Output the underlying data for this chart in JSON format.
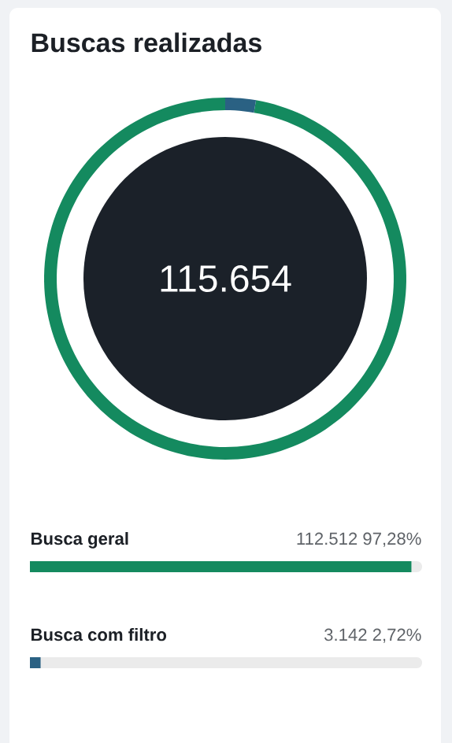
{
  "chart_data": [
    {
      "type": "donut",
      "title": "Buscas realizadas",
      "categories": [
        null,
        null
      ],
      "values": [
        97.28,
        2.72
      ],
      "colors": [
        "#148a5f",
        "#2a6183"
      ],
      "annotations": [
        "115.654"
      ]
    },
    {
      "type": "bar",
      "orientation": "horizontal",
      "categories": [
        "Busca geral",
        "Busca com filtro"
      ],
      "values": [
        97.28,
        2.72
      ],
      "colors": [
        "#148a5f",
        "#2a6183"
      ],
      "value_labels": [
        "112.512 97,28%",
        "3.142 2,72%"
      ]
    }
  ]
}
